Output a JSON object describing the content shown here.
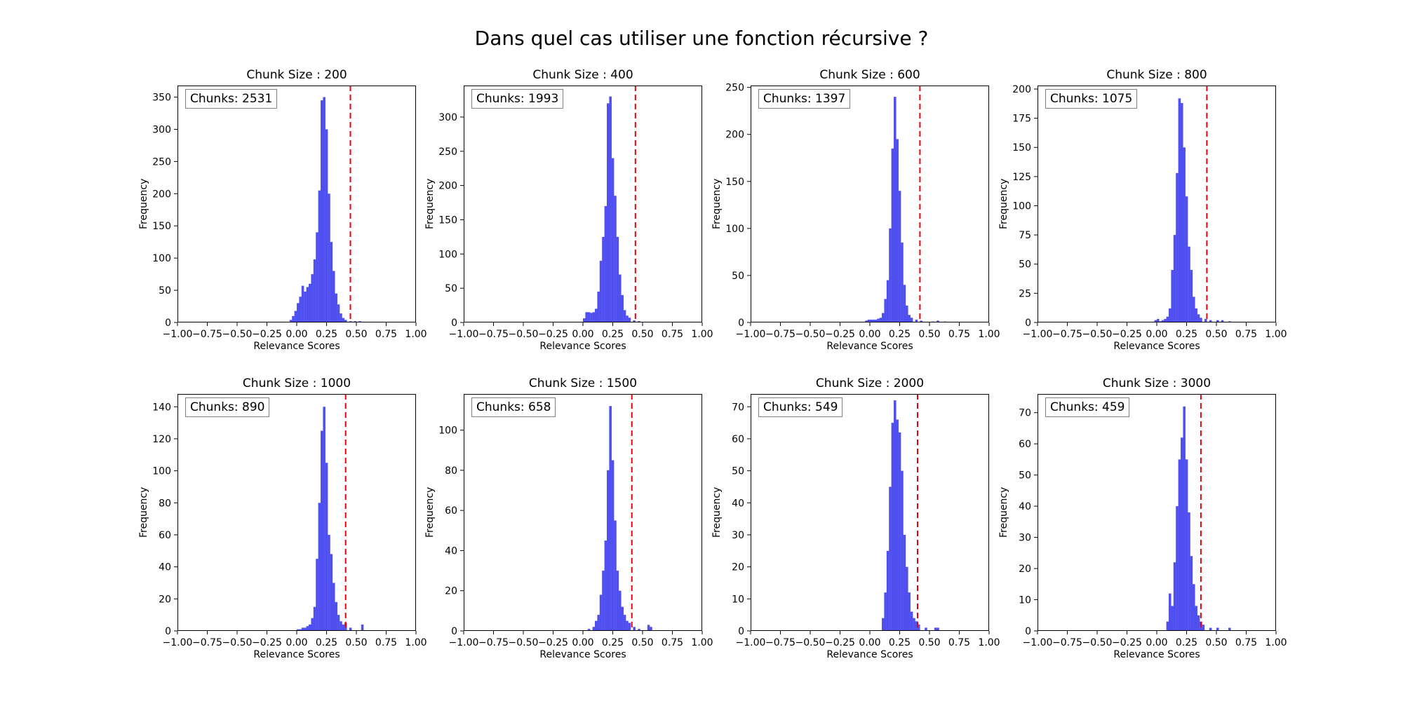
{
  "figure": {
    "title": "Dans quel cas utiliser une fonction récursive ?"
  },
  "chart_data": [
    {
      "type": "bar",
      "title": "Chunk Size : 200",
      "xlabel": "Relevance Scores",
      "ylabel": "Frequency",
      "annotation": "Chunks: 2531",
      "xlim": [
        -1.0,
        1.0
      ],
      "ylim": [
        0,
        368
      ],
      "x_ticks": [
        "-1.00",
        "-0.75",
        "-0.50",
        "-0.25",
        "0.00",
        "0.25",
        "0.50",
        "0.75",
        "1.00"
      ],
      "y_ticks": [
        0,
        50,
        100,
        150,
        200,
        250,
        300,
        350
      ],
      "bar_color": "#4a4af0",
      "threshold": {
        "x": 0.45,
        "color": "#e8000b",
        "style": "dashed"
      },
      "bin_width": 0.02,
      "bins": [
        [
          -0.05,
          4
        ],
        [
          -0.03,
          10
        ],
        [
          -0.01,
          18
        ],
        [
          0.01,
          30
        ],
        [
          0.03,
          40
        ],
        [
          0.05,
          57
        ],
        [
          0.07,
          48
        ],
        [
          0.09,
          55
        ],
        [
          0.11,
          60
        ],
        [
          0.13,
          75
        ],
        [
          0.15,
          98
        ],
        [
          0.17,
          140
        ],
        [
          0.19,
          205
        ],
        [
          0.21,
          345
        ],
        [
          0.23,
          350
        ],
        [
          0.25,
          300
        ],
        [
          0.27,
          200
        ],
        [
          0.29,
          125
        ],
        [
          0.31,
          80
        ],
        [
          0.33,
          45
        ],
        [
          0.35,
          28
        ],
        [
          0.37,
          14
        ],
        [
          0.39,
          7
        ],
        [
          0.41,
          4
        ],
        [
          0.45,
          2
        ],
        [
          0.49,
          2
        ],
        [
          0.53,
          2
        ],
        [
          0.57,
          1
        ],
        [
          0.63,
          1
        ]
      ]
    },
    {
      "type": "bar",
      "title": "Chunk Size : 400",
      "xlabel": "Relevance Scores",
      "ylabel": "Frequency",
      "annotation": "Chunks: 1993",
      "xlim": [
        -1.0,
        1.0
      ],
      "ylim": [
        0,
        346
      ],
      "x_ticks": [
        "-1.00",
        "-0.75",
        "-0.50",
        "-0.25",
        "0.00",
        "0.25",
        "0.50",
        "0.75",
        "1.00"
      ],
      "y_ticks": [
        0,
        50,
        100,
        150,
        200,
        250,
        300
      ],
      "bar_color": "#4a4af0",
      "threshold": {
        "x": 0.44,
        "color": "#e8000b",
        "style": "dashed"
      },
      "bin_width": 0.02,
      "bins": [
        [
          0.01,
          6
        ],
        [
          0.03,
          15
        ],
        [
          0.05,
          15
        ],
        [
          0.07,
          14
        ],
        [
          0.09,
          15
        ],
        [
          0.11,
          20
        ],
        [
          0.13,
          45
        ],
        [
          0.15,
          90
        ],
        [
          0.17,
          125
        ],
        [
          0.19,
          170
        ],
        [
          0.21,
          320
        ],
        [
          0.23,
          330
        ],
        [
          0.25,
          240
        ],
        [
          0.27,
          185
        ],
        [
          0.29,
          125
        ],
        [
          0.31,
          70
        ],
        [
          0.33,
          40
        ],
        [
          0.35,
          18
        ],
        [
          0.37,
          10
        ],
        [
          0.39,
          7
        ],
        [
          0.43,
          3
        ],
        [
          0.47,
          2
        ],
        [
          0.55,
          1
        ],
        [
          0.61,
          1
        ]
      ]
    },
    {
      "type": "bar",
      "title": "Chunk Size : 600",
      "xlabel": "Relevance Scores",
      "ylabel": "Frequency",
      "annotation": "Chunks: 1397",
      "xlim": [
        -1.0,
        1.0
      ],
      "ylim": [
        0,
        252
      ],
      "x_ticks": [
        "-1.00",
        "-0.75",
        "-0.50",
        "-0.25",
        "0.00",
        "0.25",
        "0.50",
        "0.75",
        "1.00"
      ],
      "y_ticks": [
        0,
        50,
        100,
        150,
        200,
        250
      ],
      "bar_color": "#4a4af0",
      "threshold": {
        "x": 0.42,
        "color": "#e8000b",
        "style": "dashed"
      },
      "bin_width": 0.02,
      "bins": [
        [
          -0.03,
          2
        ],
        [
          -0.01,
          3
        ],
        [
          0.01,
          3
        ],
        [
          0.03,
          3
        ],
        [
          0.05,
          3
        ],
        [
          0.07,
          4
        ],
        [
          0.09,
          5
        ],
        [
          0.11,
          10
        ],
        [
          0.13,
          25
        ],
        [
          0.15,
          45
        ],
        [
          0.17,
          100
        ],
        [
          0.19,
          185
        ],
        [
          0.21,
          240
        ],
        [
          0.23,
          195
        ],
        [
          0.25,
          140
        ],
        [
          0.27,
          85
        ],
        [
          0.29,
          40
        ],
        [
          0.31,
          18
        ],
        [
          0.33,
          8
        ],
        [
          0.35,
          5
        ],
        [
          0.39,
          3
        ],
        [
          0.43,
          2
        ],
        [
          0.53,
          1
        ],
        [
          0.57,
          2
        ],
        [
          0.63,
          1
        ]
      ]
    },
    {
      "type": "bar",
      "title": "Chunk Size : 800",
      "xlabel": "Relevance Scores",
      "ylabel": "Frequency",
      "annotation": "Chunks: 1075",
      "xlim": [
        -1.0,
        1.0
      ],
      "ylim": [
        0,
        203
      ],
      "x_ticks": [
        "-1.00",
        "-0.75",
        "-0.50",
        "-0.25",
        "0.00",
        "0.25",
        "0.50",
        "0.75",
        "1.00"
      ],
      "y_ticks": [
        0,
        25,
        50,
        75,
        100,
        125,
        150,
        175,
        200
      ],
      "bar_color": "#4a4af0",
      "threshold": {
        "x": 0.42,
        "color": "#e8000b",
        "style": "dashed"
      },
      "bin_width": 0.02,
      "bins": [
        [
          -0.01,
          2
        ],
        [
          0.01,
          3
        ],
        [
          0.03,
          1
        ],
        [
          0.05,
          2
        ],
        [
          0.07,
          3
        ],
        [
          0.09,
          5
        ],
        [
          0.11,
          12
        ],
        [
          0.13,
          45
        ],
        [
          0.15,
          75
        ],
        [
          0.17,
          128
        ],
        [
          0.19,
          192
        ],
        [
          0.21,
          188
        ],
        [
          0.23,
          150
        ],
        [
          0.25,
          108
        ],
        [
          0.27,
          65
        ],
        [
          0.29,
          45
        ],
        [
          0.31,
          22
        ],
        [
          0.33,
          12
        ],
        [
          0.35,
          7
        ],
        [
          0.37,
          4
        ],
        [
          0.41,
          3
        ],
        [
          0.45,
          2
        ],
        [
          0.51,
          2
        ],
        [
          0.55,
          2
        ],
        [
          0.61,
          1
        ]
      ]
    },
    {
      "type": "bar",
      "title": "Chunk Size : 1000",
      "xlabel": "Relevance Scores",
      "ylabel": "Frequency",
      "annotation": "Chunks: 890",
      "xlim": [
        -1.0,
        1.0
      ],
      "ylim": [
        0,
        148
      ],
      "x_ticks": [
        "-1.00",
        "-0.75",
        "-0.50",
        "-0.25",
        "0.00",
        "0.25",
        "0.50",
        "0.75",
        "1.00"
      ],
      "y_ticks": [
        0,
        20,
        40,
        60,
        80,
        100,
        120,
        140
      ],
      "bar_color": "#4a4af0",
      "threshold": {
        "x": 0.41,
        "color": "#e8000b",
        "style": "dashed"
      },
      "bin_width": 0.02,
      "bins": [
        [
          0.01,
          1
        ],
        [
          0.03,
          1
        ],
        [
          0.05,
          2
        ],
        [
          0.07,
          2
        ],
        [
          0.09,
          3
        ],
        [
          0.11,
          4
        ],
        [
          0.13,
          8
        ],
        [
          0.15,
          15
        ],
        [
          0.17,
          45
        ],
        [
          0.19,
          80
        ],
        [
          0.21,
          125
        ],
        [
          0.23,
          140
        ],
        [
          0.25,
          105
        ],
        [
          0.27,
          60
        ],
        [
          0.29,
          48
        ],
        [
          0.31,
          30
        ],
        [
          0.33,
          18
        ],
        [
          0.35,
          10
        ],
        [
          0.37,
          6
        ],
        [
          0.39,
          4
        ],
        [
          0.41,
          5
        ],
        [
          0.45,
          2
        ],
        [
          0.55,
          4
        ]
      ]
    },
    {
      "type": "bar",
      "title": "Chunk Size : 1500",
      "xlabel": "Relevance Scores",
      "ylabel": "Frequency",
      "annotation": "Chunks: 658",
      "xlim": [
        -1.0,
        1.0
      ],
      "ylim": [
        0,
        118
      ],
      "x_ticks": [
        "-1.00",
        "-0.75",
        "-0.50",
        "-0.25",
        "0.00",
        "0.25",
        "0.50",
        "0.75",
        "1.00"
      ],
      "y_ticks": [
        0,
        20,
        40,
        60,
        80,
        100
      ],
      "bar_color": "#4a4af0",
      "threshold": {
        "x": 0.41,
        "color": "#e8000b",
        "style": "dashed"
      },
      "bin_width": 0.02,
      "bins": [
        [
          0.05,
          1
        ],
        [
          0.09,
          2
        ],
        [
          0.11,
          5
        ],
        [
          0.13,
          8
        ],
        [
          0.15,
          18
        ],
        [
          0.17,
          30
        ],
        [
          0.19,
          45
        ],
        [
          0.21,
          80
        ],
        [
          0.23,
          112
        ],
        [
          0.25,
          85
        ],
        [
          0.27,
          55
        ],
        [
          0.29,
          30
        ],
        [
          0.31,
          20
        ],
        [
          0.33,
          12
        ],
        [
          0.35,
          8
        ],
        [
          0.37,
          5
        ],
        [
          0.39,
          4
        ],
        [
          0.43,
          2
        ],
        [
          0.47,
          1
        ],
        [
          0.55,
          3
        ],
        [
          0.57,
          2
        ]
      ]
    },
    {
      "type": "bar",
      "title": "Chunk Size : 2000",
      "xlabel": "Relevance Scores",
      "ylabel": "Frequency",
      "annotation": "Chunks: 549",
      "xlim": [
        -1.0,
        1.0
      ],
      "ylim": [
        0,
        74
      ],
      "x_ticks": [
        "-1.00",
        "-0.75",
        "-0.50",
        "-0.25",
        "0.00",
        "0.25",
        "0.50",
        "0.75",
        "1.00"
      ],
      "y_ticks": [
        0,
        10,
        20,
        30,
        40,
        50,
        60,
        70
      ],
      "bar_color": "#4a4af0",
      "threshold": {
        "x": 0.4,
        "color": "#e8000b",
        "style": "dashed"
      },
      "bin_width": 0.02,
      "bins": [
        [
          0.11,
          4
        ],
        [
          0.13,
          12
        ],
        [
          0.15,
          25
        ],
        [
          0.17,
          45
        ],
        [
          0.19,
          65
        ],
        [
          0.21,
          72
        ],
        [
          0.23,
          66
        ],
        [
          0.25,
          62
        ],
        [
          0.27,
          50
        ],
        [
          0.29,
          30
        ],
        [
          0.31,
          20
        ],
        [
          0.33,
          12
        ],
        [
          0.35,
          6
        ],
        [
          0.37,
          4
        ],
        [
          0.39,
          3
        ],
        [
          0.41,
          2
        ],
        [
          0.47,
          1
        ],
        [
          0.55,
          1
        ],
        [
          0.57,
          1
        ]
      ]
    },
    {
      "type": "bar",
      "title": "Chunk Size : 3000",
      "xlabel": "Relevance Scores",
      "ylabel": "Frequency",
      "annotation": "Chunks: 459",
      "xlim": [
        -1.0,
        1.0
      ],
      "ylim": [
        0,
        76
      ],
      "x_ticks": [
        "-1.00",
        "-0.75",
        "-0.50",
        "-0.25",
        "0.00",
        "0.25",
        "0.50",
        "0.75",
        "1.00"
      ],
      "y_ticks": [
        0,
        10,
        20,
        30,
        40,
        50,
        60,
        70
      ],
      "bar_color": "#4a4af0",
      "threshold": {
        "x": 0.37,
        "color": "#e8000b",
        "style": "dashed"
      },
      "bin_width": 0.02,
      "bins": [
        [
          0.09,
          3
        ],
        [
          0.11,
          12
        ],
        [
          0.13,
          8
        ],
        [
          0.15,
          22
        ],
        [
          0.17,
          40
        ],
        [
          0.19,
          55
        ],
        [
          0.21,
          62
        ],
        [
          0.23,
          72
        ],
        [
          0.25,
          55
        ],
        [
          0.27,
          38
        ],
        [
          0.29,
          24
        ],
        [
          0.31,
          15
        ],
        [
          0.33,
          8
        ],
        [
          0.35,
          5
        ],
        [
          0.37,
          3
        ],
        [
          0.39,
          2
        ],
        [
          0.45,
          1
        ],
        [
          0.51,
          1
        ],
        [
          0.61,
          1
        ]
      ]
    }
  ]
}
